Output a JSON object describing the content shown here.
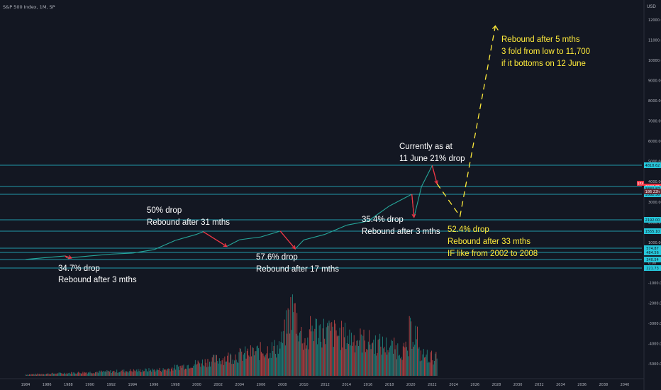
{
  "header": {
    "title": "S&P 500 Index, 1M, SP"
  },
  "axis": {
    "currency": "USD"
  },
  "chart_data": {
    "type": "line",
    "title": "S&P 500 Index, 1M, SP",
    "x_ticks": [
      "1984",
      "1986",
      "1988",
      "1990",
      "1992",
      "1994",
      "1996",
      "1998",
      "2000",
      "2002",
      "2004",
      "2006",
      "2008",
      "2010",
      "2012",
      "2014",
      "2016",
      "2018",
      "2020",
      "2022",
      "2024",
      "2026",
      "2028",
      "2030",
      "2032",
      "2034",
      "2036",
      "2038",
      "2040"
    ],
    "y_ticks": [
      "12000.00",
      "11000.00",
      "10000.00",
      "9000.00",
      "8000.00",
      "7000.00",
      "6000.00",
      "5000.00",
      "4000.00",
      "3000.00",
      "2000.00",
      "1000.00",
      "0.00",
      "-1000.00",
      "-2000.00",
      "-3000.00",
      "-4000.00",
      "-5000.00"
    ],
    "price_series": {
      "name": "SPX",
      "x": [
        1984.0,
        1987.7,
        1987.9,
        1990.0,
        1992.0,
        1994.0,
        1996.0,
        1998.0,
        2000.0,
        2000.6,
        2002.8,
        2004.0,
        2006.0,
        2007.8,
        2009.2,
        2010.0,
        2012.0,
        2014.0,
        2016.0,
        2018.0,
        2020.1,
        2020.3,
        2021.0,
        2022.0,
        2022.45
      ],
      "y": [
        160,
        330,
        225,
        330,
        420,
        470,
        640,
        1100,
        1400,
        1530,
        800,
        1130,
        1270,
        1560,
        680,
        1120,
        1400,
        1850,
        2050,
        2800,
        3380,
        2240,
        3760,
        4800,
        3900
      ]
    },
    "price_levels": [
      "4818.62",
      "3900.85",
      "3880.87",
      "3582.36",
      "2192.00",
      "1555.10",
      "574.87",
      "484.56",
      "340.54",
      "221.73"
    ],
    "current_price": "3900.85",
    "current_countdown": "186 22h",
    "drops": [
      {
        "label": "34.7% drop",
        "rebound": "Rebound after 3 mths"
      },
      {
        "label": "50% drop",
        "rebound": "Rebound after 31 mths"
      },
      {
        "label": "57.6% drop",
        "rebound": "Rebound after 17 mths"
      },
      {
        "label": "35.4% drop",
        "rebound": "Rebound after 3 mths"
      }
    ],
    "current_note": [
      "Currently as at",
      "11 June 21% drop"
    ],
    "projection_down": [
      "52.4% drop",
      "Rebound after 33 mths",
      "IF like from 2002 to 2008"
    ],
    "projection_up": [
      "Rebound after 5 mths",
      "3 fold from low to 11,700",
      "if it bottoms on 12 June"
    ],
    "projection_path": {
      "x": [
        2022.45,
        2024.6,
        2027.9
      ],
      "y": [
        3900,
        2290,
        11700
      ]
    },
    "volume_note": "monthly volume histogram below price chart"
  },
  "colors": {
    "background": "#131722",
    "text": "#b2b5be",
    "annotation_white": "#ffffff",
    "annotation_yellow": "#ffeb3b",
    "level_line": "#26c6da",
    "drop_arrow": "#f23645",
    "line_up": "#26a69a",
    "line_down": "#ef5350",
    "price_tag": "#f23645"
  }
}
